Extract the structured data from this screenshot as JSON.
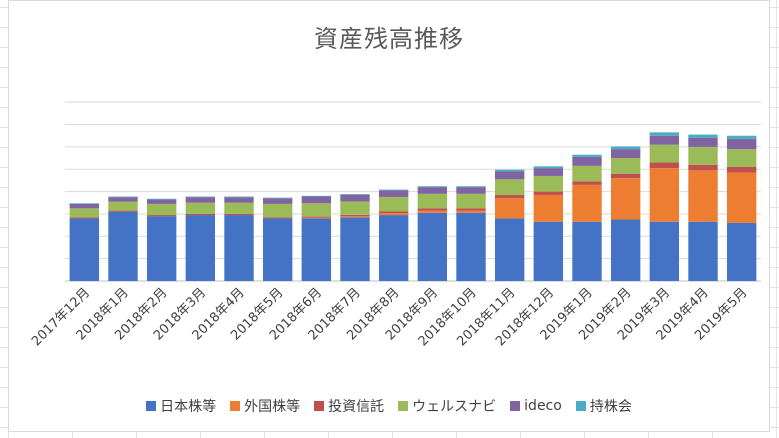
{
  "chart_data": {
    "type": "bar",
    "stacked": true,
    "title": "資産残高推移",
    "xlabel": "",
    "ylabel": "",
    "ylim": [
      0,
      85
    ],
    "grid": true,
    "legend_position": "bottom",
    "categories": [
      "2017年12月",
      "2018年1月",
      "2018年2月",
      "2018年3月",
      "2018年4月",
      "2018年5月",
      "2018年6月",
      "2018年7月",
      "2018年8月",
      "2018年9月",
      "2018年10月",
      "2018年11月",
      "2018年12月",
      "2019年1月",
      "2019年2月",
      "2019年3月",
      "2019年4月",
      "2019年5月"
    ],
    "series": [
      {
        "name": "日本株等",
        "color": "#4472C4",
        "values": [
          28,
          31,
          29,
          29.5,
          29.5,
          28,
          28,
          28.5,
          29.5,
          30.5,
          30.5,
          28,
          26.5,
          26.5,
          27.5,
          26.5,
          26.5,
          26
        ]
      },
      {
        "name": "外国株等",
        "color": "#ED7D31",
        "values": [
          0,
          0,
          0,
          0,
          0,
          0,
          0.3,
          0.5,
          0.8,
          1,
          1,
          9,
          12,
          16.5,
          18.5,
          24,
          23,
          22.5
        ]
      },
      {
        "name": "投資信託",
        "color": "#C0504D",
        "values": [
          0.5,
          0.5,
          0.5,
          0.5,
          0.5,
          0.5,
          0.5,
          0.6,
          0.8,
          1,
          1,
          1.5,
          1.5,
          1.5,
          2,
          2.5,
          2.5,
          2.5
        ]
      },
      {
        "name": "ウェルスナビ",
        "color": "#9BBB59",
        "values": [
          4,
          4,
          5,
          5,
          5,
          6,
          6,
          6,
          6.5,
          6.5,
          6.5,
          7,
          7,
          7,
          7,
          8,
          8,
          8
        ]
      },
      {
        "name": "ideco",
        "color": "#8064A2",
        "values": [
          2,
          2,
          2,
          2.5,
          2.5,
          2.5,
          3,
          3,
          3,
          3,
          3,
          3.5,
          3.5,
          4,
          4,
          4,
          4,
          4.5
        ]
      },
      {
        "name": "持株会",
        "color": "#4BACC6",
        "values": [
          0.3,
          0.3,
          0.3,
          0.3,
          0.3,
          0.3,
          0.3,
          0.3,
          0.3,
          0.4,
          0.4,
          0.8,
          0.8,
          1,
          1.2,
          1.5,
          1.5,
          1.5
        ]
      }
    ]
  }
}
